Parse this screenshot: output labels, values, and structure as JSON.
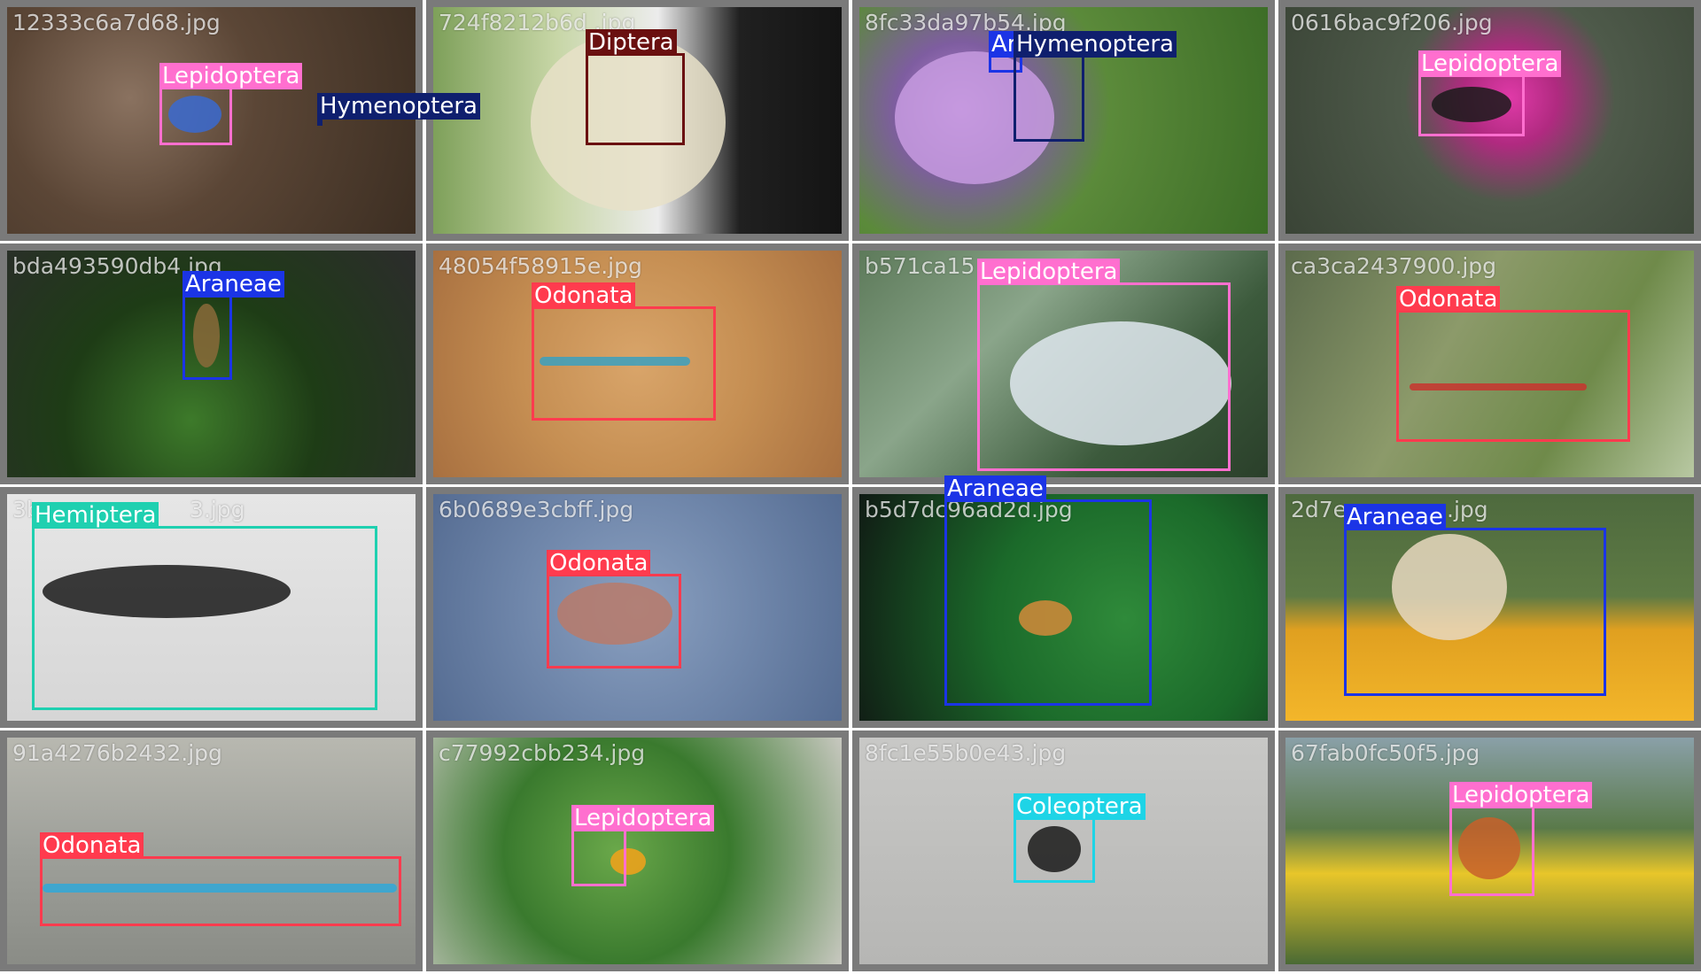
{
  "colors": {
    "tile_border": "#7a7a7a",
    "Lepidoptera": "#ff6fcf",
    "Hymenoptera": "#0f1f6e",
    "Diptera": "#6a1010",
    "Araneae": "#1b34e6",
    "Odonata": "#ff3b4e",
    "Hemiptera": "#1fd0b0",
    "Coleoptera": "#1ed4e6"
  },
  "tiles": [
    {
      "filename": "12333c6a7d68.jpg",
      "boxes": [
        {
          "label": "Lepidoptera"
        },
        {
          "label": "Hymenoptera"
        }
      ]
    },
    {
      "filename": "724f8212b6d .jpg",
      "boxes": [
        {
          "label": "Diptera"
        }
      ]
    },
    {
      "filename": "8fc33da97b54.jpg",
      "boxes": [
        {
          "label": "Araneae"
        },
        {
          "label": "Hymenoptera"
        }
      ]
    },
    {
      "filename": "0616bac9f206.jpg",
      "boxes": [
        {
          "label": "Lepidoptera"
        }
      ]
    },
    {
      "filename": "bda493590db4.jpg",
      "boxes": [
        {
          "label": "Araneae"
        }
      ]
    },
    {
      "filename": "48054f58915e.jpg",
      "boxes": [
        {
          "label": "Odonata"
        }
      ]
    },
    {
      "filename": "b571ca15",
      "boxes": [
        {
          "label": "Lepidoptera"
        }
      ]
    },
    {
      "filename": "ca3ca2437900.jpg",
      "boxes": [
        {
          "label": "Odonata"
        }
      ]
    },
    {
      "filename": "3b",
      "filename_tail": "3.jpg",
      "boxes": [
        {
          "label": "Hemiptera"
        }
      ]
    },
    {
      "filename": "6b0689e3cbff.jpg",
      "boxes": [
        {
          "label": "Odonata"
        }
      ]
    },
    {
      "filename": "b5d7dc96ad2d.jpg",
      "boxes": [
        {
          "label": "Araneae"
        }
      ]
    },
    {
      "filename": "2d7e",
      "filename_tail": ".jpg",
      "boxes": [
        {
          "label": "Araneae"
        }
      ]
    },
    {
      "filename": "91a4276b2432.jpg",
      "boxes": [
        {
          "label": "Odonata"
        }
      ]
    },
    {
      "filename": "c77992cbb234.jpg",
      "boxes": [
        {
          "label": "Lepidoptera"
        }
      ]
    },
    {
      "filename": "8fc1e55b0e43.jpg",
      "boxes": [
        {
          "label": "Coleoptera"
        }
      ]
    },
    {
      "filename": "67fab0fc50f5.jpg",
      "boxes": [
        {
          "label": "Lepidoptera"
        }
      ]
    }
  ]
}
